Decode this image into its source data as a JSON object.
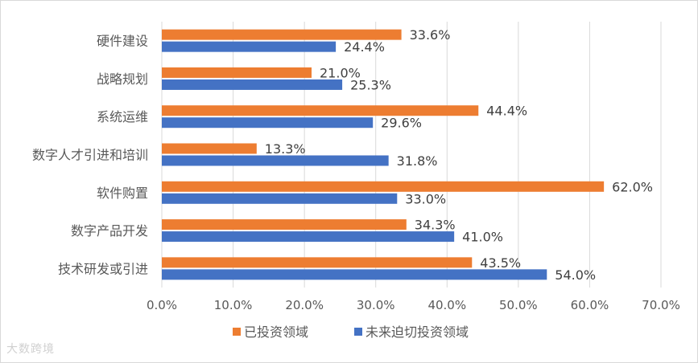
{
  "chart_data": {
    "type": "bar",
    "orientation": "horizontal",
    "title": "",
    "categories": [
      "硬件建设",
      "战略规划",
      "系统运维",
      "数字人才引进和培训",
      "软件购置",
      "数字产品开发",
      "技术研发或引进"
    ],
    "series": [
      {
        "name": "已投资领域",
        "color": "#ED7D31",
        "values": [
          33.6,
          21.0,
          44.4,
          13.3,
          62.0,
          34.3,
          43.5
        ]
      },
      {
        "name": "未来迫切投资领域",
        "color": "#4472C4",
        "values": [
          24.4,
          25.3,
          29.6,
          31.8,
          33.0,
          41.0,
          54.0
        ]
      }
    ],
    "xlim": [
      0,
      70
    ],
    "xticks": [
      "0.0%",
      "10.0%",
      "20.0%",
      "30.0%",
      "40.0%",
      "50.0%",
      "60.0%",
      "70.0%"
    ],
    "value_suffix": "%",
    "grid": "vertical",
    "legend_position": "bottom"
  },
  "watermark": "大数跨境"
}
